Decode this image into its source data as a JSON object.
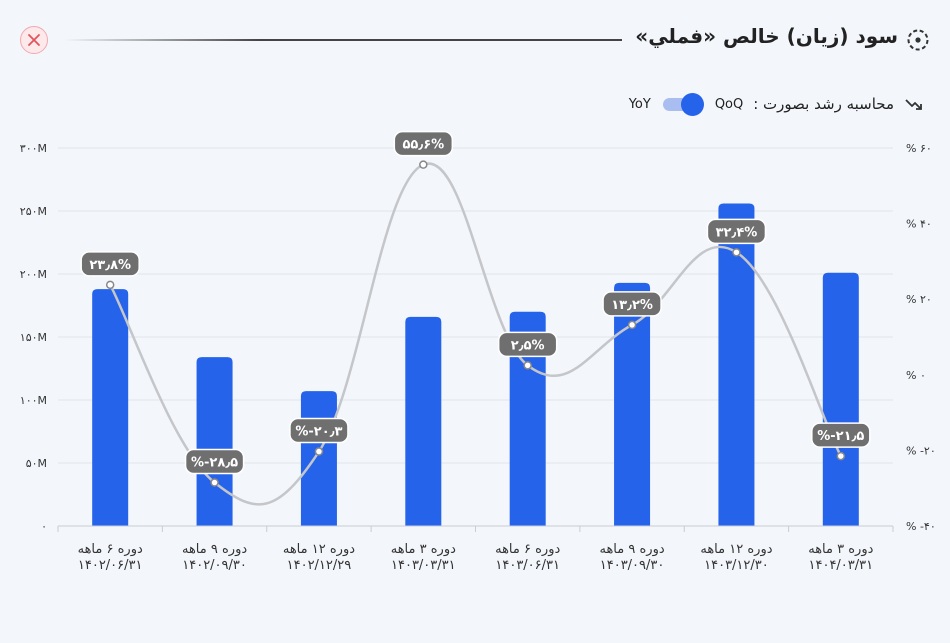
{
  "title": "سود (زیان) خالص «فملي»",
  "close_icon": "close-icon",
  "title_icon": "dashed-circle-icon",
  "growth": {
    "label": "محاسبه رشد بصورت :",
    "option_qoq": "QoQ",
    "option_yoy": "YoY",
    "selected": "QoQ",
    "icon": "trend-arrow-icon"
  },
  "colors": {
    "bar": "#2563eb",
    "line": "#c4c6c9",
    "badge": "#6f6f6f"
  },
  "chart_data": {
    "type": "bar",
    "categories": [
      [
        "دوره ۶ ماهه",
        "۱۴۰۲/۰۶/۳۱"
      ],
      [
        "دوره ۹ ماهه",
        "۱۴۰۲/۰۹/۳۰"
      ],
      [
        "دوره ۱۲ ماهه",
        "۱۴۰۲/۱۲/۲۹"
      ],
      [
        "دوره ۳ ماهه",
        "۱۴۰۳/۰۳/۳۱"
      ],
      [
        "دوره ۶ ماهه",
        "۱۴۰۳/۰۶/۳۱"
      ],
      [
        "دوره ۹ ماهه",
        "۱۴۰۳/۰۹/۳۰"
      ],
      [
        "دوره ۱۲ ماهه",
        "۱۴۰۳/۱۲/۳۰"
      ],
      [
        "دوره ۳ ماهه",
        "۱۴۰۴/۰۳/۳۱"
      ]
    ],
    "series": [
      {
        "values": [
          188,
          134,
          107,
          166,
          170,
          193,
          256,
          201
        ],
        "axis": "left",
        "kind": "bar"
      },
      {
        "values": [
          23.8,
          -28.5,
          -20.3,
          55.6,
          2.5,
          13.2,
          32.4,
          -21.5
        ],
        "axis": "right",
        "kind": "line",
        "labels": [
          "۲۳٫۸%",
          "%-۲۸٫۵",
          "%-۲۰٫۳",
          "۵۵٫۶%",
          "۲٫۵%",
          "۱۳٫۲%",
          "۳۲٫۴%",
          "%-۲۱٫۵"
        ]
      }
    ],
    "left_axis": {
      "ylim": [
        0,
        300
      ],
      "ticks": [
        0,
        50,
        100,
        150,
        200,
        250,
        300
      ],
      "tick_labels": [
        "۰",
        "۵۰M",
        "۱۰۰M",
        "۱۵۰M",
        "۲۰۰M",
        "۲۵۰M",
        "۳۰۰M"
      ]
    },
    "right_axis": {
      "ylim": [
        -40,
        60
      ],
      "ticks": [
        -40,
        -20,
        0,
        20,
        40,
        60
      ],
      "tick_labels": [
        "% -۴۰",
        "% -۲۰",
        "% ۰",
        "% ۲۰",
        "% ۴۰",
        "% ۶۰"
      ]
    },
    "grid": true
  }
}
